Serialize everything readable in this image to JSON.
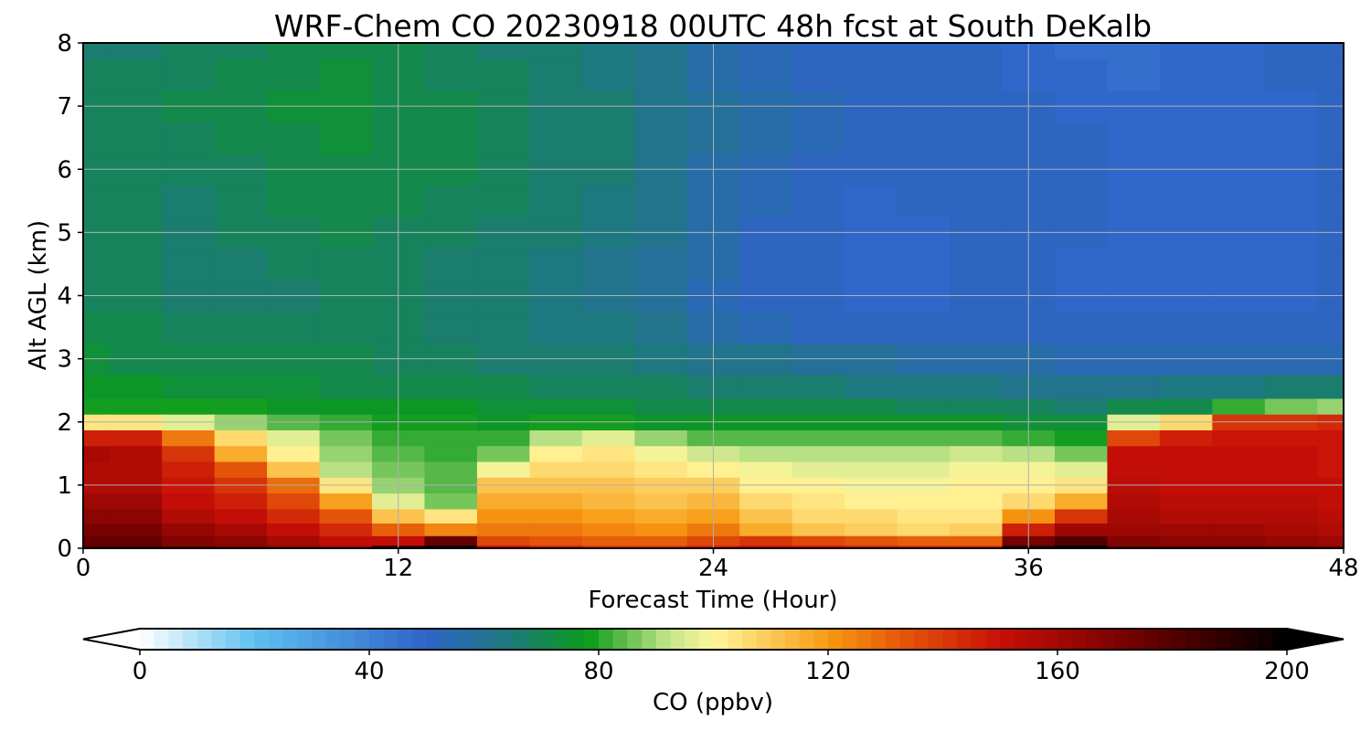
{
  "chart_data": {
    "type": "heatmap",
    "title": "WRF-Chem CO  20230918 00UTC 48h fcst at South DeKalb",
    "xlabel": "Forecast Time (Hour)",
    "ylabel": "Alt AGL (km)",
    "xlim": [
      0,
      48
    ],
    "ylim": [
      0,
      8
    ],
    "x_ticks": [
      0,
      12,
      24,
      36,
      48
    ],
    "y_ticks": [
      0,
      1,
      2,
      3,
      4,
      5,
      6,
      7,
      8
    ],
    "grid": true,
    "hours": [
      0,
      2,
      4,
      6,
      8,
      10,
      12,
      14,
      16,
      18,
      20,
      22,
      24,
      26,
      28,
      30,
      32,
      34,
      36,
      38,
      40,
      42,
      44,
      46,
      48
    ],
    "altitudes_km": [
      0.0,
      0.1,
      0.3,
      0.5,
      0.75,
      1.0,
      1.25,
      1.5,
      1.75,
      2.0,
      2.25,
      2.5,
      3.0,
      3.5,
      4.0,
      4.5,
      5.0,
      5.5,
      6.0,
      6.5,
      7.0,
      7.5,
      8.0
    ],
    "values_ppbv": [
      [
        182,
        177,
        172,
        167,
        162,
        157,
        157,
        158,
        147,
        103,
        79,
        76,
        73,
        71,
        69,
        69,
        69,
        69,
        69,
        69,
        69,
        68,
        67
      ],
      [
        180,
        175,
        170,
        165,
        160,
        155,
        155,
        156,
        147,
        103,
        79,
        75,
        72,
        70,
        68,
        68,
        68,
        68,
        68,
        69,
        69,
        68,
        67
      ],
      [
        177,
        169,
        164,
        157,
        152,
        148,
        145,
        140,
        125,
        95,
        78,
        74,
        71,
        69,
        67,
        67,
        67,
        67,
        68,
        69,
        70,
        69,
        68
      ],
      [
        172,
        165,
        158,
        152,
        147,
        141,
        134,
        116,
        106,
        88,
        78,
        73,
        70,
        68,
        67,
        67,
        68,
        68,
        69,
        70,
        71,
        70,
        69
      ],
      [
        167,
        158,
        151,
        144,
        137,
        128,
        110,
        100,
        95,
        84,
        77,
        73,
        70,
        68,
        67,
        68,
        69,
        70,
        71,
        72,
        73,
        72,
        71
      ],
      [
        162,
        152,
        144,
        134,
        118,
        104,
        92,
        89,
        86,
        80,
        76,
        72,
        70,
        68,
        68,
        69,
        70,
        71,
        72,
        73,
        74,
        73,
        72
      ],
      [
        185,
        150,
        131,
        111,
        95,
        88,
        85,
        84,
        82,
        79,
        76,
        72,
        69,
        68,
        68,
        68,
        69,
        70,
        71,
        72,
        72,
        71,
        70
      ],
      [
        195,
        175,
        123,
        104,
        87,
        84,
        83,
        82,
        80,
        78,
        75,
        71,
        68,
        67,
        67,
        67,
        68,
        69,
        70,
        71,
        70,
        69,
        68
      ],
      [
        150,
        135,
        126,
        122,
        116,
        110,
        98,
        86,
        80,
        77,
        74,
        70,
        67,
        66,
        65,
        66,
        67,
        68,
        69,
        69,
        69,
        68,
        67
      ],
      [
        145,
        133,
        125,
        120,
        116,
        112,
        107,
        101,
        90,
        78,
        73,
        69,
        66,
        64,
        63,
        64,
        65,
        66,
        67,
        67,
        67,
        66,
        65
      ],
      [
        142,
        132,
        123,
        118,
        114,
        110,
        106,
        103,
        95,
        79,
        73,
        69,
        65,
        63,
        61,
        62,
        63,
        64,
        65,
        65,
        65,
        64,
        63
      ],
      [
        142,
        132,
        122,
        117,
        112,
        108,
        103,
        98,
        89,
        77,
        72,
        68,
        64,
        61,
        58,
        59,
        60,
        61,
        62,
        62,
        62,
        61,
        60
      ],
      [
        146,
        137,
        125,
        119,
        114,
        109,
        102,
        93,
        84,
        76,
        71,
        67,
        62,
        57,
        54,
        55,
        55,
        56,
        57,
        58,
        58,
        57,
        56
      ],
      [
        150,
        141,
        116,
        111,
        107,
        102,
        98,
        92,
        83,
        75,
        70,
        66,
        60,
        54,
        52,
        52,
        52,
        53,
        54,
        55,
        55,
        54,
        53
      ],
      [
        148,
        137,
        112,
        107,
        103,
        100,
        97,
        92,
        83,
        75,
        70,
        65,
        59,
        52,
        50,
        50,
        50,
        51,
        52,
        53,
        53,
        52,
        52
      ],
      [
        146,
        133,
        109,
        105,
        102,
        99,
        97,
        92,
        83,
        75,
        70,
        64,
        58,
        51,
        48,
        48,
        48,
        49,
        50,
        51,
        51,
        51,
        50
      ],
      [
        144,
        130,
        107,
        104,
        101,
        99,
        97,
        92,
        83,
        75,
        69,
        63,
        57,
        52,
        48,
        49,
        49,
        50,
        51,
        50,
        51,
        50,
        50
      ],
      [
        143,
        130,
        108,
        104,
        102,
        100,
        98,
        93,
        84,
        75,
        69,
        63,
        57,
        52,
        50,
        51,
        52,
        52,
        52,
        51,
        50,
        50,
        50
      ],
      [
        190,
        170,
        145,
        120,
        106,
        102,
        98,
        90,
        81,
        74,
        68,
        62,
        55,
        51,
        50,
        51,
        51,
        52,
        52,
        51,
        50,
        49,
        48
      ],
      [
        198,
        180,
        160,
        140,
        115,
        103,
        95,
        87,
        79,
        73,
        67,
        61,
        54,
        50,
        49,
        49,
        50,
        50,
        50,
        50,
        49,
        48,
        47
      ],
      [
        175,
        168,
        162,
        158,
        155,
        153,
        151,
        152,
        135,
        95,
        70,
        62,
        53,
        50,
        49,
        49,
        48,
        48,
        48,
        48,
        48,
        47,
        46
      ],
      [
        174,
        167,
        161,
        157,
        154,
        152,
        150,
        151,
        146,
        105,
        72,
        63,
        53,
        50,
        49,
        49,
        48,
        48,
        48,
        48,
        48,
        48,
        48
      ],
      [
        173,
        166,
        160,
        156,
        154,
        152,
        150,
        150,
        148,
        140,
        80,
        64,
        53,
        50,
        49,
        49,
        48,
        48,
        48,
        48,
        48,
        49,
        49
      ],
      [
        170,
        164,
        158,
        155,
        153,
        151,
        150,
        150,
        148,
        142,
        85,
        66,
        53,
        50,
        49,
        49,
        49,
        49,
        49,
        49,
        49,
        50,
        50
      ],
      [
        168,
        162,
        157,
        154,
        152,
        150,
        149,
        149,
        148,
        143,
        88,
        67,
        54,
        51,
        50,
        50,
        50,
        50,
        50,
        50,
        50,
        51,
        51
      ]
    ],
    "colorbar": {
      "label": "CO  (ppbv)",
      "ticks": [
        0,
        40,
        80,
        120,
        160,
        200
      ],
      "range": [
        0,
        200
      ],
      "levels": 80,
      "extend": "both",
      "colormap_stops": [
        {
          "v": 0,
          "color": "#ffffff"
        },
        {
          "v": 20,
          "color": "#5ec0f0"
        },
        {
          "v": 50,
          "color": "#2f63c8"
        },
        {
          "v": 65,
          "color": "#1c7a78"
        },
        {
          "v": 78,
          "color": "#0a9a1a"
        },
        {
          "v": 92,
          "color": "#c2e48a"
        },
        {
          "v": 100,
          "color": "#fff69a"
        },
        {
          "v": 120,
          "color": "#f79a12"
        },
        {
          "v": 133,
          "color": "#e4560a"
        },
        {
          "v": 150,
          "color": "#c80f07"
        },
        {
          "v": 175,
          "color": "#6a0000"
        },
        {
          "v": 200,
          "color": "#000000"
        }
      ]
    }
  }
}
